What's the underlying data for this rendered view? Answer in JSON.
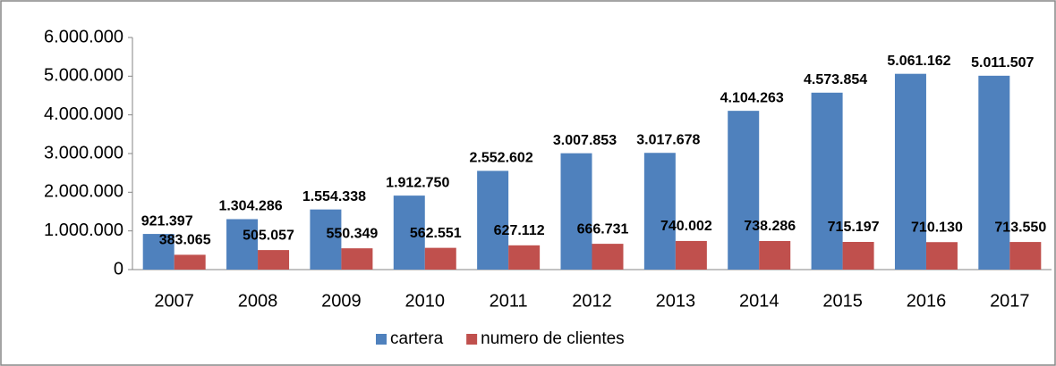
{
  "chart_data": {
    "type": "bar",
    "categories": [
      "2007",
      "2008",
      "2009",
      "2010",
      "2011",
      "2012",
      "2013",
      "2014",
      "2015",
      "2016",
      "2017"
    ],
    "series": [
      {
        "name": "cartera",
        "color": "#4f81bd",
        "values": [
          921397,
          1304286,
          1554338,
          1912750,
          2552602,
          3007853,
          3017678,
          4104263,
          4573854,
          5061162,
          5011507
        ],
        "value_labels": [
          "921.397",
          "1.304.286",
          "1.554.338",
          "1.912.750",
          "2.552.602",
          "3.007.853",
          "3.017.678",
          "4.104.263",
          "4.573.854",
          "5.061.162",
          "5.011.507"
        ]
      },
      {
        "name": "numero de clientes",
        "color": "#c0504d",
        "values": [
          383065,
          505057,
          550349,
          562551,
          627112,
          666731,
          740002,
          738286,
          715197,
          710130,
          713550
        ],
        "value_labels": [
          "383.065",
          "505.057",
          "550.349",
          "562.551",
          "627.112",
          "666.731",
          "740.002",
          "738.286",
          "715.197",
          "710.130",
          "713.550"
        ]
      }
    ],
    "ylim": [
      0,
      6000000
    ],
    "yticks": [
      0,
      {
        "value": 1000000,
        "label": "1.000.000"
      },
      {
        "value": 2000000,
        "label": "2.000.000"
      },
      {
        "value": 3000000,
        "label": "3.000.000"
      },
      {
        "value": 4000000,
        "label": "4.000.000"
      },
      {
        "value": 5000000,
        "label": "5.000.000"
      },
      {
        "value": 6000000,
        "label": "6.000.000"
      }
    ],
    "legend": "bottom"
  }
}
